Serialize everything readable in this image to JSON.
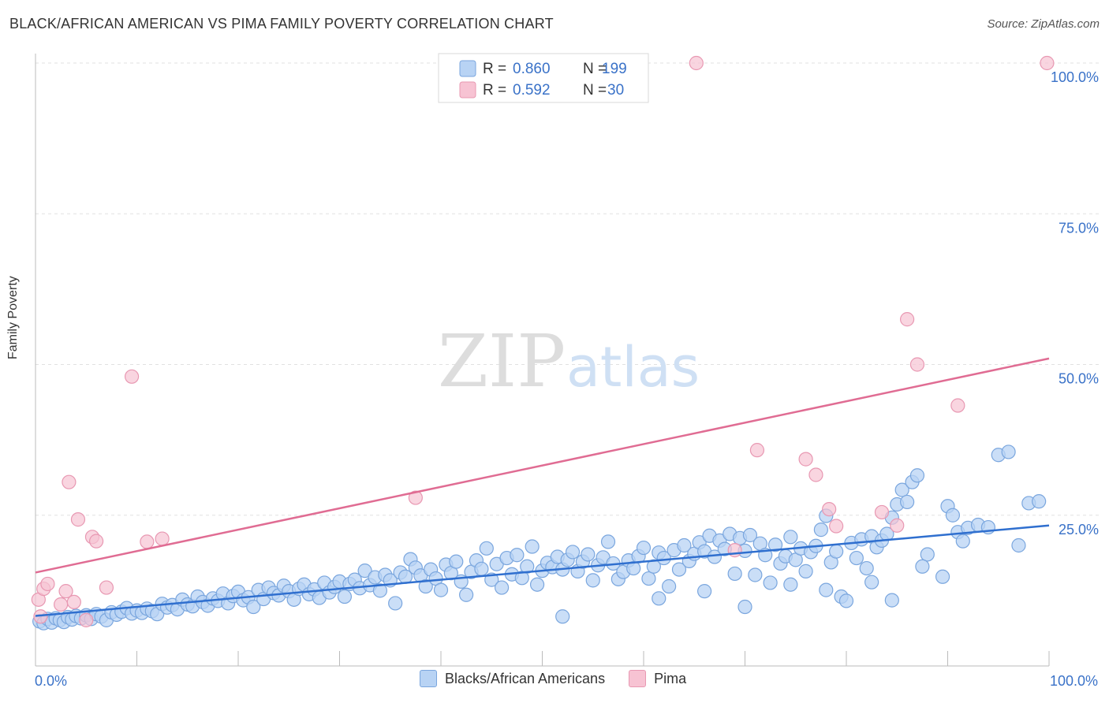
{
  "header": {
    "title": "BLACK/AFRICAN AMERICAN VS PIMA FAMILY POVERTY CORRELATION CHART",
    "source": "Source: ZipAtlas.com"
  },
  "watermark": {
    "part1": "ZIP",
    "part2": "atlas"
  },
  "legend_top": {
    "rows": [
      {
        "r_label": "R =",
        "r_value": "0.860",
        "n_label": "N =",
        "n_value": "199"
      },
      {
        "r_label": "R =",
        "r_value": "0.592",
        "n_label": "N =",
        "n_value": "30"
      }
    ]
  },
  "legend_bottom": {
    "items": [
      {
        "label": "Blacks/African Americans"
      },
      {
        "label": "Pima"
      }
    ]
  },
  "colors": {
    "blue_fill": "#b8d3f4",
    "blue_stroke": "#7aa6de",
    "blue_line": "#2f6fcf",
    "pink_fill": "#f7c3d3",
    "pink_stroke": "#e898b2",
    "pink_line": "#e06c93",
    "tick_text": "#3a72c8",
    "grid": "#e1e1e1"
  },
  "chart_data": {
    "type": "scatter",
    "title": "BLACK/AFRICAN AMERICAN VS PIMA FAMILY POVERTY CORRELATION CHART",
    "xlabel": "",
    "ylabel": "Family Poverty",
    "xlim": [
      0,
      100
    ],
    "ylim": [
      0,
      100
    ],
    "x_tick_labels": [
      "0.0%",
      "100.0%"
    ],
    "y_tick_labels": [
      "25.0%",
      "50.0%",
      "75.0%",
      "100.0%"
    ],
    "y_ticks": [
      25,
      50,
      75,
      100
    ],
    "grid": true,
    "legend_position": "top-center",
    "series": [
      {
        "name": "Blacks/African Americans",
        "r": 0.86,
        "n": 199,
        "trend": {
          "x": [
            0,
            100
          ],
          "y": [
            8.3,
            23.3
          ]
        },
        "points": [
          [
            0.4,
            7.4
          ],
          [
            0.8,
            7.1
          ],
          [
            1.2,
            7.8
          ],
          [
            1.6,
            7.2
          ],
          [
            2.0,
            7.9
          ],
          [
            2.4,
            7.6
          ],
          [
            2.8,
            7.3
          ],
          [
            3.2,
            8.1
          ],
          [
            3.6,
            7.7
          ],
          [
            4.0,
            8.3
          ],
          [
            4.5,
            7.9
          ],
          [
            5.0,
            8.4
          ],
          [
            5.5,
            7.8
          ],
          [
            6.0,
            8.6
          ],
          [
            6.5,
            8.2
          ],
          [
            7.0,
            7.6
          ],
          [
            7.5,
            8.9
          ],
          [
            8.0,
            8.5
          ],
          [
            8.5,
            9.0
          ],
          [
            9.0,
            9.6
          ],
          [
            9.5,
            8.7
          ],
          [
            10.0,
            9.2
          ],
          [
            10.5,
            8.8
          ],
          [
            11.0,
            9.5
          ],
          [
            11.5,
            9.1
          ],
          [
            12.0,
            8.6
          ],
          [
            12.5,
            10.3
          ],
          [
            13.0,
            9.7
          ],
          [
            13.5,
            10.1
          ],
          [
            14.0,
            9.4
          ],
          [
            14.5,
            11.0
          ],
          [
            15.0,
            10.2
          ],
          [
            15.5,
            9.9
          ],
          [
            16.0,
            11.5
          ],
          [
            16.5,
            10.6
          ],
          [
            17.0,
            10.0
          ],
          [
            17.5,
            11.2
          ],
          [
            18.0,
            10.8
          ],
          [
            18.5,
            12.0
          ],
          [
            19.0,
            10.4
          ],
          [
            19.5,
            11.6
          ],
          [
            20.0,
            12.3
          ],
          [
            20.5,
            10.9
          ],
          [
            21.0,
            11.4
          ],
          [
            21.5,
            9.8
          ],
          [
            22.0,
            12.6
          ],
          [
            22.5,
            11.1
          ],
          [
            23.0,
            13.0
          ],
          [
            23.5,
            12.1
          ],
          [
            24.0,
            11.7
          ],
          [
            24.5,
            13.3
          ],
          [
            25.0,
            12.4
          ],
          [
            25.5,
            11.0
          ],
          [
            26.0,
            12.8
          ],
          [
            26.5,
            13.5
          ],
          [
            27.0,
            11.9
          ],
          [
            27.5,
            12.7
          ],
          [
            28.0,
            11.3
          ],
          [
            28.5,
            13.8
          ],
          [
            29.0,
            12.2
          ],
          [
            29.5,
            13.1
          ],
          [
            30.0,
            14.0
          ],
          [
            30.5,
            11.5
          ],
          [
            31.0,
            13.6
          ],
          [
            31.5,
            14.3
          ],
          [
            32.0,
            12.9
          ],
          [
            32.5,
            15.8
          ],
          [
            33.0,
            13.4
          ],
          [
            33.5,
            14.7
          ],
          [
            34.0,
            12.5
          ],
          [
            34.5,
            15.1
          ],
          [
            35.0,
            14.2
          ],
          [
            35.5,
            10.4
          ],
          [
            36.0,
            15.5
          ],
          [
            36.5,
            14.8
          ],
          [
            37.0,
            17.7
          ],
          [
            37.5,
            16.3
          ],
          [
            38.0,
            15.0
          ],
          [
            38.5,
            13.2
          ],
          [
            39.0,
            16.0
          ],
          [
            39.5,
            14.5
          ],
          [
            40.0,
            12.6
          ],
          [
            40.5,
            16.8
          ],
          [
            41.0,
            15.4
          ],
          [
            41.5,
            17.3
          ],
          [
            42.0,
            14.0
          ],
          [
            42.5,
            11.8
          ],
          [
            43.0,
            15.6
          ],
          [
            43.5,
            17.5
          ],
          [
            44.0,
            16.1
          ],
          [
            44.5,
            19.5
          ],
          [
            45.0,
            14.3
          ],
          [
            45.5,
            16.9
          ],
          [
            46.0,
            13.0
          ],
          [
            46.5,
            17.9
          ],
          [
            47.0,
            15.2
          ],
          [
            47.5,
            18.4
          ],
          [
            48.0,
            14.6
          ],
          [
            48.5,
            16.5
          ],
          [
            49.0,
            19.8
          ],
          [
            49.5,
            13.5
          ],
          [
            50.0,
            15.8
          ],
          [
            50.5,
            17.1
          ],
          [
            51.0,
            16.4
          ],
          [
            51.5,
            18.1
          ],
          [
            52.0,
            16.0
          ],
          [
            52.5,
            17.6
          ],
          [
            53.0,
            18.9
          ],
          [
            53.5,
            15.7
          ],
          [
            54.0,
            17.3
          ],
          [
            54.5,
            18.5
          ],
          [
            55.0,
            14.2
          ],
          [
            55.5,
            16.7
          ],
          [
            56.0,
            18.0
          ],
          [
            56.5,
            20.6
          ],
          [
            57.0,
            17.0
          ],
          [
            57.5,
            14.4
          ],
          [
            58.0,
            15.6
          ],
          [
            58.5,
            17.5
          ],
          [
            59.0,
            16.2
          ],
          [
            59.5,
            18.2
          ],
          [
            60.0,
            19.6
          ],
          [
            60.5,
            14.5
          ],
          [
            61.0,
            16.5
          ],
          [
            61.5,
            18.8
          ],
          [
            62.0,
            17.9
          ],
          [
            62.5,
            13.2
          ],
          [
            63.0,
            19.2
          ],
          [
            63.5,
            16.0
          ],
          [
            64.0,
            20.0
          ],
          [
            64.5,
            17.4
          ],
          [
            65.0,
            18.6
          ],
          [
            65.5,
            20.5
          ],
          [
            66.0,
            19.0
          ],
          [
            66.5,
            21.6
          ],
          [
            67.0,
            18.1
          ],
          [
            67.5,
            20.8
          ],
          [
            68.0,
            19.4
          ],
          [
            68.5,
            21.9
          ],
          [
            69.0,
            15.3
          ],
          [
            69.5,
            21.2
          ],
          [
            70.0,
            19.1
          ],
          [
            70.5,
            21.7
          ],
          [
            71.0,
            15.1
          ],
          [
            71.5,
            20.3
          ],
          [
            72.0,
            18.4
          ],
          [
            72.5,
            13.8
          ],
          [
            73.0,
            20.1
          ],
          [
            73.5,
            17.0
          ],
          [
            74.0,
            18.2
          ],
          [
            74.5,
            21.4
          ],
          [
            75.0,
            17.6
          ],
          [
            75.5,
            19.5
          ],
          [
            76.0,
            15.7
          ],
          [
            76.5,
            18.9
          ],
          [
            77.0,
            19.9
          ],
          [
            77.5,
            22.6
          ],
          [
            78.0,
            24.9
          ],
          [
            78.5,
            17.2
          ],
          [
            79.0,
            19.0
          ],
          [
            79.5,
            11.5
          ],
          [
            80.0,
            10.8
          ],
          [
            80.5,
            20.4
          ],
          [
            81.0,
            17.9
          ],
          [
            81.5,
            21.0
          ],
          [
            82.0,
            16.2
          ],
          [
            82.5,
            21.5
          ],
          [
            83.0,
            19.7
          ],
          [
            83.5,
            20.8
          ],
          [
            84.0,
            21.9
          ],
          [
            84.5,
            24.6
          ],
          [
            85.0,
            26.8
          ],
          [
            85.5,
            29.2
          ],
          [
            86.0,
            27.2
          ],
          [
            86.5,
            30.5
          ],
          [
            87.0,
            31.6
          ],
          [
            88.0,
            18.5
          ],
          [
            89.5,
            14.8
          ],
          [
            90.0,
            26.5
          ],
          [
            90.5,
            25.0
          ],
          [
            91.0,
            22.2
          ],
          [
            91.5,
            20.7
          ],
          [
            92.0,
            22.9
          ],
          [
            93.0,
            23.4
          ],
          [
            94.0,
            23.0
          ],
          [
            95.0,
            35.0
          ],
          [
            96.0,
            35.5
          ],
          [
            97.0,
            20.0
          ],
          [
            98.0,
            27.0
          ],
          [
            99.0,
            27.3
          ],
          [
            52.0,
            8.2
          ],
          [
            61.5,
            11.2
          ],
          [
            66.0,
            12.4
          ],
          [
            70.0,
            9.8
          ],
          [
            74.5,
            13.5
          ],
          [
            78.0,
            12.6
          ],
          [
            82.5,
            13.9
          ],
          [
            84.5,
            10.9
          ],
          [
            87.5,
            16.5
          ]
        ]
      },
      {
        "name": "Pima",
        "r": 0.592,
        "n": 30,
        "trend": {
          "x": [
            0,
            100
          ],
          "y": [
            15.5,
            51.0
          ]
        },
        "points": [
          [
            0.3,
            11.0
          ],
          [
            0.8,
            12.8
          ],
          [
            1.2,
            13.6
          ],
          [
            2.5,
            10.2
          ],
          [
            3.0,
            12.4
          ],
          [
            3.3,
            30.5
          ],
          [
            3.8,
            10.6
          ],
          [
            4.2,
            24.3
          ],
          [
            5.0,
            7.6
          ],
          [
            5.6,
            21.4
          ],
          [
            6.0,
            20.7
          ],
          [
            7.0,
            13.0
          ],
          [
            9.5,
            48.0
          ],
          [
            11.0,
            20.6
          ],
          [
            12.5,
            21.1
          ],
          [
            37.5,
            27.9
          ],
          [
            65.2,
            100.0
          ],
          [
            69.0,
            19.2
          ],
          [
            71.2,
            35.8
          ],
          [
            76.0,
            34.3
          ],
          [
            77.0,
            31.7
          ],
          [
            78.3,
            26.0
          ],
          [
            79.0,
            23.2
          ],
          [
            83.5,
            25.5
          ],
          [
            85.0,
            23.3
          ],
          [
            86.0,
            57.5
          ],
          [
            87.0,
            50.0
          ],
          [
            91.0,
            43.2
          ],
          [
            99.8,
            100.0
          ],
          [
            0.5,
            8.2
          ]
        ]
      }
    ]
  }
}
